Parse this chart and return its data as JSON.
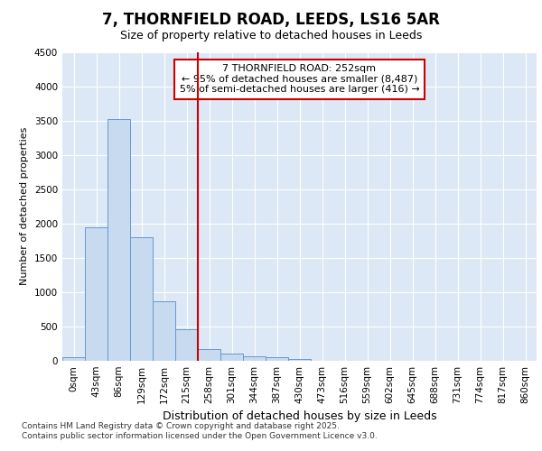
{
  "title_line1": "7, THORNFIELD ROAD, LEEDS, LS16 5AR",
  "title_line2": "Size of property relative to detached houses in Leeds",
  "xlabel": "Distribution of detached houses by size in Leeds",
  "ylabel": "Number of detached properties",
  "categories": [
    "0sqm",
    "43sqm",
    "86sqm",
    "129sqm",
    "172sqm",
    "215sqm",
    "258sqm",
    "301sqm",
    "344sqm",
    "387sqm",
    "430sqm",
    "473sqm",
    "516sqm",
    "559sqm",
    "602sqm",
    "645sqm",
    "688sqm",
    "731sqm",
    "774sqm",
    "817sqm",
    "860sqm"
  ],
  "values": [
    50,
    1950,
    3520,
    1800,
    870,
    460,
    175,
    100,
    60,
    50,
    30,
    0,
    0,
    0,
    0,
    0,
    0,
    0,
    0,
    0,
    0
  ],
  "bar_color": "#c8daf0",
  "bar_edge_color": "#6699cc",
  "vline_x": 6.0,
  "vline_color": "#cc0000",
  "annotation_text": "7 THORNFIELD ROAD: 252sqm\n← 95% of detached houses are smaller (8,487)\n5% of semi-detached houses are larger (416) →",
  "annotation_box_edgecolor": "#cc0000",
  "ylim": [
    0,
    4500
  ],
  "yticks": [
    0,
    500,
    1000,
    1500,
    2000,
    2500,
    3000,
    3500,
    4000,
    4500
  ],
  "plot_bg_color": "#dce8f5",
  "grid_color": "#ffffff",
  "fig_bg_color": "#ffffff",
  "footnote1": "Contains HM Land Registry data © Crown copyright and database right 2025.",
  "footnote2": "Contains public sector information licensed under the Open Government Licence v3.0.",
  "title_fontsize": 12,
  "subtitle_fontsize": 9,
  "ylabel_fontsize": 8,
  "xlabel_fontsize": 9,
  "tick_fontsize": 7.5,
  "footnote_fontsize": 6.5,
  "annotation_fontsize": 8
}
